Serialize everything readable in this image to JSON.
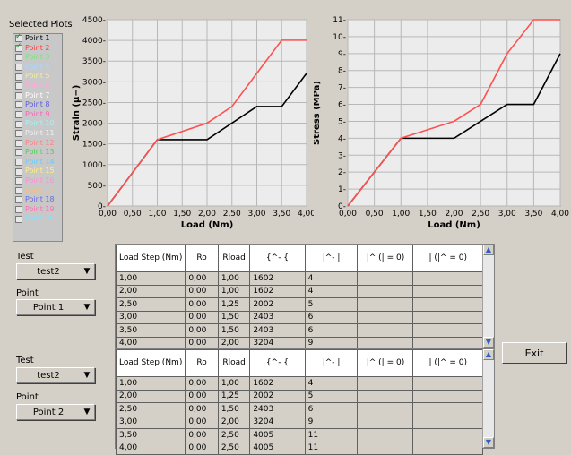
{
  "selected_plots": {
    "title": "Selected Plots",
    "items": [
      {
        "label": "Point 1",
        "checked": true,
        "color": "#000000"
      },
      {
        "label": "Point 2",
        "checked": true,
        "color": "#ff3b3b"
      },
      {
        "label": "Point 3",
        "checked": false,
        "color": "#7fe07f"
      },
      {
        "label": "Point 4",
        "checked": false,
        "color": "#a8d8ff"
      },
      {
        "label": "Point 5",
        "checked": false,
        "color": "#f0f0a0"
      },
      {
        "label": "Point 6",
        "checked": false,
        "color": "#ffa8d8"
      },
      {
        "label": "Point 7",
        "checked": false,
        "color": "#ffffff"
      },
      {
        "label": "Point 8",
        "checked": false,
        "color": "#5a5ae0"
      },
      {
        "label": "Point 9",
        "checked": false,
        "color": "#ff60c0"
      },
      {
        "label": "Point 10",
        "checked": false,
        "color": "#a8f0f0"
      },
      {
        "label": "Point 11",
        "checked": false,
        "color": "#f0f0f0"
      },
      {
        "label": "Point 12",
        "checked": false,
        "color": "#ff8080"
      },
      {
        "label": "Point 13",
        "checked": false,
        "color": "#50d050"
      },
      {
        "label": "Point 14",
        "checked": false,
        "color": "#60d0ff"
      },
      {
        "label": "Point 15",
        "checked": false,
        "color": "#fff080"
      },
      {
        "label": "Point 16",
        "checked": false,
        "color": "#ff90d0"
      },
      {
        "label": "Point 17",
        "checked": false,
        "color": "#f0c080"
      },
      {
        "label": "Point 18",
        "checked": false,
        "color": "#6a6ae0"
      },
      {
        "label": "Point 19",
        "checked": false,
        "color": "#ff70b0"
      },
      {
        "label": "Point 20",
        "checked": false,
        "color": "#80e0ff"
      }
    ]
  },
  "chart_data": [
    {
      "type": "line",
      "xlabel": "Load (Nm)",
      "ylabel": "Strain (µ−)",
      "xlim": [
        0,
        4
      ],
      "ylim": [
        0,
        4500
      ],
      "xticks": [
        "0,00",
        "0,50",
        "1,00",
        "1,50",
        "2,00",
        "2,50",
        "3,00",
        "3,50",
        "4,00"
      ],
      "yticks": [
        "0-",
        "500-",
        "1000-",
        "1500-",
        "2000-",
        "2500-",
        "3000-",
        "3500-",
        "4000-",
        "4500-"
      ],
      "series": [
        {
          "color": "#000000",
          "x": [
            0,
            1,
            2,
            2.5,
            3,
            3.5,
            4
          ],
          "y": [
            0,
            1602,
            1602,
            2002,
            2403,
            2403,
            3204
          ]
        },
        {
          "color": "#ff5050",
          "x": [
            0,
            1,
            2,
            2.5,
            3,
            3.5,
            4
          ],
          "y": [
            0,
            1602,
            2002,
            2403,
            3204,
            4005,
            4005
          ]
        }
      ]
    },
    {
      "type": "line",
      "xlabel": "Load (Nm)",
      "ylabel": "Stress (MPa)",
      "xlim": [
        0,
        4
      ],
      "ylim": [
        0,
        11
      ],
      "xticks": [
        "0,00",
        "0,50",
        "1,00",
        "1,50",
        "2,00",
        "2,50",
        "3,00",
        "3,50",
        "4,00"
      ],
      "yticks": [
        "0-",
        "1-",
        "2-",
        "3-",
        "4-",
        "5-",
        "6-",
        "7-",
        "8-",
        "9-",
        "10-",
        "11-"
      ],
      "series": [
        {
          "color": "#000000",
          "x": [
            0,
            1,
            2,
            2.5,
            3,
            3.5,
            4
          ],
          "y": [
            0,
            4,
            4,
            5,
            6,
            6,
            9
          ]
        },
        {
          "color": "#ff5050",
          "x": [
            0,
            1,
            2,
            2.5,
            3,
            3.5,
            4
          ],
          "y": [
            0,
            4,
            5,
            6,
            9,
            11,
            11
          ]
        }
      ]
    }
  ],
  "panel1": {
    "test_label": "Test",
    "test_value": "test2",
    "point_label": "Point",
    "point_value": "Point 1"
  },
  "panel2": {
    "test_label": "Test",
    "test_value": "test2",
    "point_label": "Point",
    "point_value": "Point 2"
  },
  "table_headers": [
    "Load Step (Nm)",
    "Ro",
    "Rload",
    "{^- {",
    "|^- |",
    "|^ (| = 0)",
    "| (|^ = 0)"
  ],
  "table1_rows": [
    [
      "1,00",
      "0,00",
      "1,00",
      "1602",
      "4",
      "",
      ""
    ],
    [
      "2,00",
      "0,00",
      "1,00",
      "1602",
      "4",
      "",
      ""
    ],
    [
      "2,50",
      "0,00",
      "1,25",
      "2002",
      "5",
      "",
      ""
    ],
    [
      "3,00",
      "0,00",
      "1,50",
      "2403",
      "6",
      "",
      ""
    ],
    [
      "3,50",
      "0,00",
      "1,50",
      "2403",
      "6",
      "",
      ""
    ],
    [
      "4,00",
      "0,00",
      "2,00",
      "3204",
      "9",
      "",
      ""
    ]
  ],
  "table2_rows": [
    [
      "1,00",
      "0,00",
      "1,00",
      "1602",
      "4",
      "",
      ""
    ],
    [
      "2,00",
      "0,00",
      "1,25",
      "2002",
      "5",
      "",
      ""
    ],
    [
      "2,50",
      "0,00",
      "1,50",
      "2403",
      "6",
      "",
      ""
    ],
    [
      "3,00",
      "0,00",
      "2,00",
      "3204",
      "9",
      "",
      ""
    ],
    [
      "3,50",
      "0,00",
      "2,50",
      "4005",
      "11",
      "",
      ""
    ],
    [
      "4,00",
      "0,00",
      "2,50",
      "4005",
      "11",
      "",
      ""
    ]
  ],
  "exit_label": "Exit"
}
